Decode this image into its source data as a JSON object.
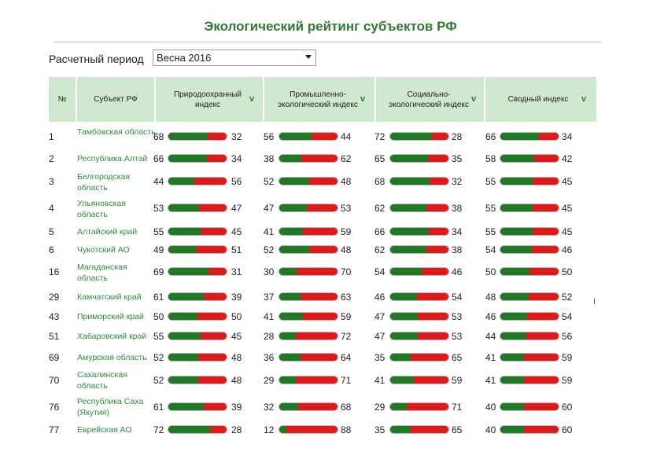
{
  "title": "Экологический рейтинг субъектов РФ",
  "period": {
    "label": "Расчетный период",
    "value": "Весна 2016"
  },
  "columns": {
    "num": "№",
    "region": "Субъект РФ",
    "c1": "Природоохранный индекс",
    "c2": "Промышленно-экологический индекс",
    "c3": "Социально-экологический индекс",
    "c4": "Сводный индекс",
    "sort_symbol": "v"
  },
  "colors": {
    "green": "#1f7a25",
    "red": "#e01a1a",
    "header_bg": "#cfe8cf",
    "link": "#2f8a3e"
  },
  "rows": [
    {
      "num": "1",
      "region": "Тамбовская область",
      "vals": [
        [
          68,
          32
        ],
        [
          56,
          44
        ],
        [
          72,
          28
        ],
        [
          66,
          34
        ]
      ]
    },
    {
      "num": "2",
      "region": "Республика Алтай",
      "vals": [
        [
          66,
          34
        ],
        [
          38,
          62
        ],
        [
          65,
          35
        ],
        [
          58,
          42
        ]
      ]
    },
    {
      "num": "3",
      "region": "Белгородская область",
      "vals": [
        [
          44,
          56
        ],
        [
          52,
          48
        ],
        [
          68,
          32
        ],
        [
          55,
          45
        ]
      ]
    },
    {
      "num": "4",
      "region": "Ульяновская область",
      "vals": [
        [
          53,
          47
        ],
        [
          47,
          53
        ],
        [
          62,
          38
        ],
        [
          55,
          45
        ]
      ]
    },
    {
      "num": "5",
      "region": "Алтайский край",
      "vals": [
        [
          55,
          45
        ],
        [
          41,
          59
        ],
        [
          66,
          34
        ],
        [
          55,
          45
        ]
      ]
    },
    {
      "num": "6",
      "region": "Чукотский АО",
      "vals": [
        [
          49,
          51
        ],
        [
          52,
          48
        ],
        [
          62,
          38
        ],
        [
          54,
          46
        ]
      ]
    },
    {
      "num": "16",
      "region": "Магаданская область",
      "vals": [
        [
          69,
          31
        ],
        [
          30,
          70
        ],
        [
          54,
          46
        ],
        [
          50,
          50
        ]
      ]
    },
    {
      "num": "29",
      "region": "Камчатский край",
      "vals": [
        [
          61,
          39
        ],
        [
          37,
          63
        ],
        [
          46,
          54
        ],
        [
          48,
          52
        ]
      ]
    },
    {
      "num": "43",
      "region": "Приморский край",
      "vals": [
        [
          50,
          50
        ],
        [
          41,
          59
        ],
        [
          47,
          53
        ],
        [
          46,
          54
        ]
      ]
    },
    {
      "num": "51",
      "region": "Хабаровский край",
      "vals": [
        [
          55,
          45
        ],
        [
          28,
          72
        ],
        [
          47,
          53
        ],
        [
          44,
          56
        ]
      ]
    },
    {
      "num": "69",
      "region": "Амурская область",
      "vals": [
        [
          52,
          48
        ],
        [
          36,
          64
        ],
        [
          35,
          65
        ],
        [
          41,
          59
        ]
      ]
    },
    {
      "num": "70",
      "region": "Сахалинская область",
      "vals": [
        [
          52,
          48
        ],
        [
          29,
          71
        ],
        [
          41,
          59
        ],
        [
          41,
          59
        ]
      ]
    },
    {
      "num": "76",
      "region": "Республика Саха (Якутия)",
      "vals": [
        [
          61,
          39
        ],
        [
          32,
          68
        ],
        [
          29,
          71
        ],
        [
          40,
          60
        ]
      ]
    },
    {
      "num": "77",
      "region": "Еврейская АО",
      "vals": [
        [
          72,
          28
        ],
        [
          12,
          88
        ],
        [
          35,
          65
        ],
        [
          40,
          60
        ]
      ]
    }
  ],
  "misc": {
    "cursor": "I"
  }
}
